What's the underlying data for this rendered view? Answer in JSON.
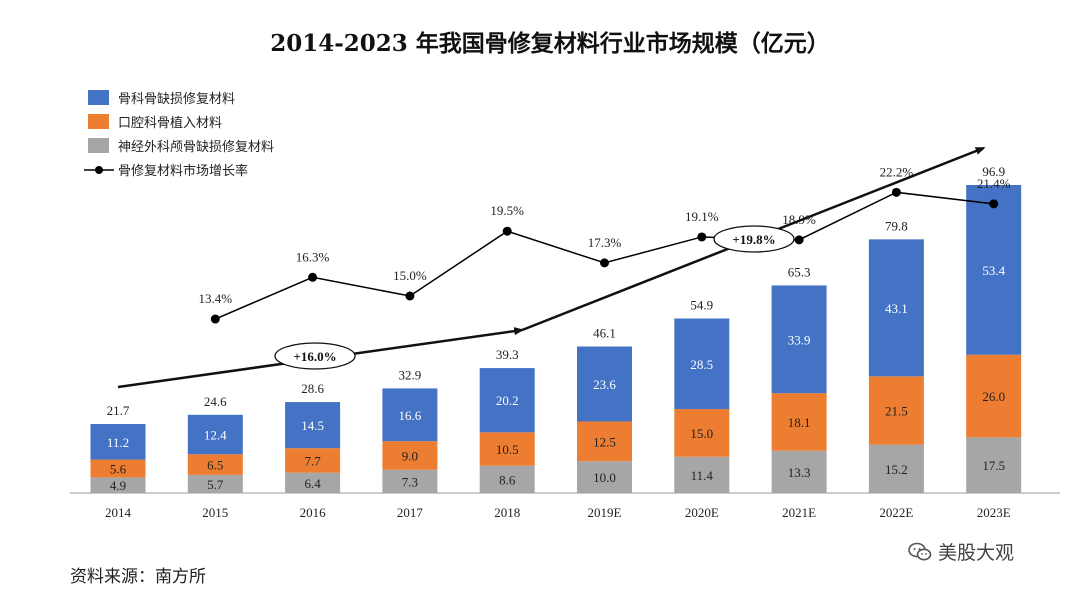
{
  "chart_data": {
    "type": "bar",
    "stacked": true,
    "title": "2014-2023 年我国骨修复材料行业市场规模（亿元）",
    "categories": [
      "2014",
      "2015",
      "2016",
      "2017",
      "2018",
      "2019E",
      "2020E",
      "2021E",
      "2022E",
      "2023E"
    ],
    "series": [
      {
        "name": "神经外科颅骨缺损修复材料",
        "color": "#a6a6a6",
        "values": [
          4.9,
          5.7,
          6.4,
          7.3,
          8.6,
          10.0,
          11.4,
          13.3,
          15.2,
          17.5
        ],
        "labels": [
          "4.9",
          "5.7",
          "6.4",
          "7.3",
          "8.6",
          "10.0",
          "11.4",
          "13.3",
          "15.2",
          "17.5"
        ]
      },
      {
        "name": "口腔科骨植入材料",
        "color": "#ed7d31",
        "values": [
          5.6,
          6.5,
          7.7,
          9.0,
          10.5,
          12.5,
          15.0,
          18.1,
          21.5,
          26.0
        ],
        "labels": [
          "5.6",
          "6.5",
          "7.7",
          "9.0",
          "10.5",
          "12.5",
          "15.0",
          "18.1",
          "21.5",
          "26.0"
        ]
      },
      {
        "name": "骨科骨缺损修复材料",
        "color": "#4472c4",
        "values": [
          11.2,
          12.4,
          14.5,
          16.6,
          20.2,
          23.6,
          28.5,
          33.9,
          43.1,
          53.4
        ],
        "labels": [
          "11.2",
          "12.4",
          "14.5",
          "16.6",
          "20.2",
          "23.6",
          "28.5",
          "33.9",
          "43.1",
          "53.4"
        ]
      }
    ],
    "totals": [
      "21.7",
      "24.6",
      "28.6",
      "32.9",
      "39.3",
      "46.1",
      "54.9",
      "65.3",
      "79.8",
      "96.9"
    ],
    "growth_series": {
      "name": "骨修复材料市场增长率",
      "color": "#000000",
      "start_index": 1,
      "values": [
        13.4,
        16.3,
        15.0,
        19.5,
        17.3,
        19.1,
        18.9,
        22.2,
        21.4
      ],
      "labels": [
        "13.4%",
        "16.3%",
        "15.0%",
        "19.5%",
        "17.3%",
        "19.1%",
        "18.9%",
        "22.2%",
        "21.4%"
      ]
    },
    "cagr_annotations": [
      {
        "label": "+16.0%",
        "from": "2014",
        "to": "2018"
      },
      {
        "label": "+19.8%",
        "from": "2018",
        "to": "2023E"
      }
    ],
    "legend_order": [
      "骨科骨缺损修复材料",
      "口腔科骨植入材料",
      "神经外科颅骨缺损修复材料",
      "骨修复材料市场增长率"
    ],
    "legend_position": "top-left",
    "ylim": [
      0,
      100
    ],
    "growth_ylim": [
      0,
      30
    ],
    "grid": false
  },
  "source": "资料来源：南方所",
  "watermark": "美股大观"
}
